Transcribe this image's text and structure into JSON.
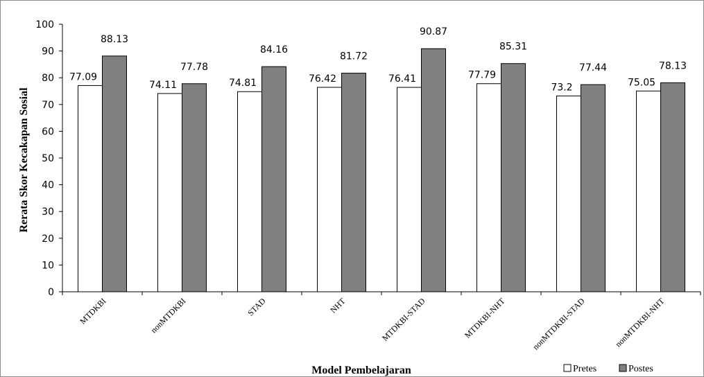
{
  "chart_data": {
    "type": "bar",
    "xlabel": "Model Pembelajaran",
    "ylabel": "Rerata Skor Kecakapan Sosial",
    "ylim": [
      0,
      100
    ],
    "yticks": [
      0,
      10,
      20,
      30,
      40,
      50,
      60,
      70,
      80,
      90,
      100
    ],
    "grid": false,
    "legend_position": "bottom-right",
    "categories": [
      "MTDKBI",
      "nonMTDKBI",
      "STAD",
      "NHT",
      "MTDKBI-STAD",
      "MTDKBI-NHT",
      "nonMTDKBI-STAD",
      "nonMTDKBI-NHT"
    ],
    "series": [
      {
        "name": "Pretes",
        "color": "#ffffff",
        "values": [
          77.09,
          74.11,
          74.81,
          76.42,
          76.41,
          77.79,
          73.2,
          75.05
        ],
        "labels": [
          "77.09",
          "74.11",
          "74.81",
          "76.42",
          "76.41",
          "77.79",
          "73.2",
          "75.05"
        ]
      },
      {
        "name": "Postes",
        "color": "#808080",
        "values": [
          88.13,
          77.78,
          84.16,
          81.72,
          90.87,
          85.31,
          77.44,
          78.13
        ],
        "labels": [
          "88.13",
          "77.78",
          "84.16",
          "81.72",
          "90.87",
          "85.31",
          "77.44",
          "78.13"
        ]
      }
    ]
  }
}
